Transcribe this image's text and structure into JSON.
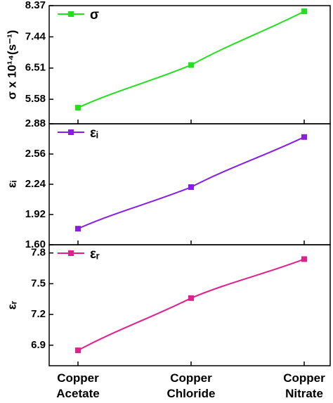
{
  "chart_data": [
    {
      "type": "line",
      "y_label": "σ x 10¹⁴(s⁻¹)",
      "ylim": [
        4.85,
        8.37
      ],
      "yticks": [
        5.58,
        6.51,
        7.44,
        8.37
      ],
      "series": [
        {
          "name": "σ",
          "color": "#22e01c",
          "values": [
            5.33,
            6.6,
            8.2
          ]
        }
      ]
    },
    {
      "type": "line",
      "y_label": "εᵢ",
      "ylim": [
        1.6,
        2.88
      ],
      "yticks": [
        {
          "value": 1.6,
          "label": "1.60"
        },
        1.92,
        2.24,
        2.56,
        2.88
      ],
      "series": [
        {
          "name": "εᵢ",
          "color": "#8a1ee0",
          "values": [
            1.77,
            2.21,
            2.74
          ]
        }
      ]
    },
    {
      "type": "line",
      "y_label": "εᵣ",
      "ylim": [
        6.7,
        7.88
      ],
      "yticks": [
        6.9,
        7.2,
        7.5,
        7.8
      ],
      "categories": [
        "Copper Acetate",
        "Copper Chloride",
        "Copper Nitrate"
      ],
      "series": [
        {
          "name": "εᵣ",
          "color": "#e0208c",
          "values": [
            6.85,
            7.36,
            7.74
          ]
        }
      ]
    }
  ]
}
